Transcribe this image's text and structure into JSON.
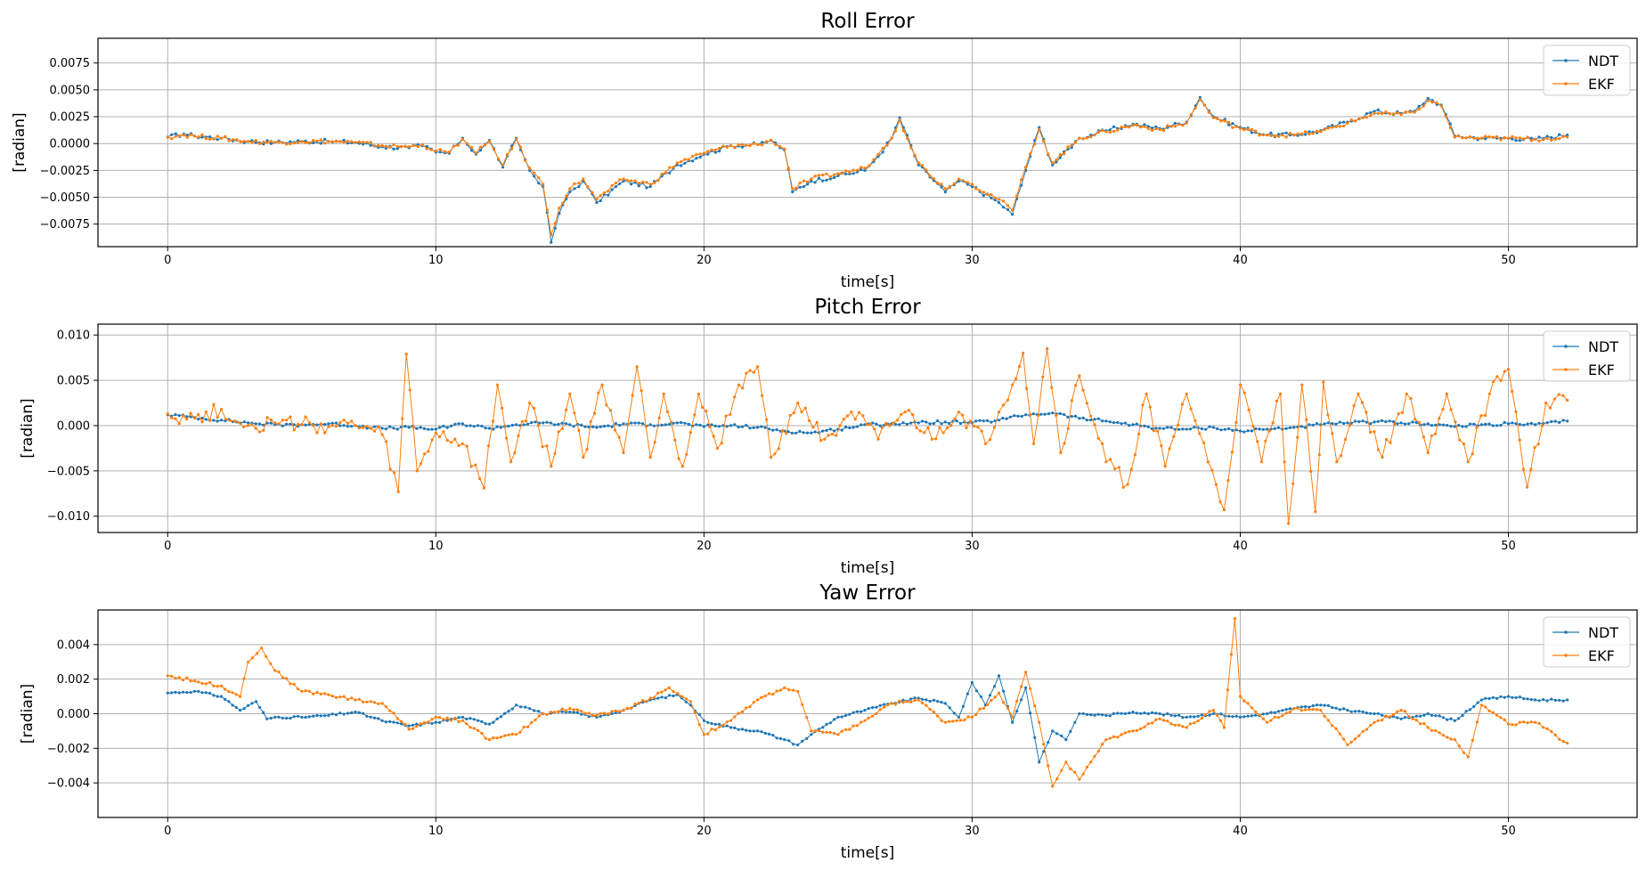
{
  "colors": {
    "ndt": "#1f77b4",
    "ekf": "#ff7f0e",
    "grid": "#b0b0b0"
  },
  "chart_data": [
    {
      "type": "line",
      "title": "Roll Error",
      "xlabel": "time[s]",
      "ylabel": "[radian]",
      "xlim": [
        -2.6,
        54.8
      ],
      "ylim": [
        -0.0096,
        0.0098
      ],
      "xticks": [
        0,
        10,
        20,
        30,
        40,
        50
      ],
      "xtick_labels": [
        "0",
        "10",
        "20",
        "30",
        "40",
        "50"
      ],
      "yticks": [
        -0.0075,
        -0.005,
        -0.0025,
        0.0,
        0.0025,
        0.005,
        0.0075
      ],
      "ytick_labels": [
        "−0.0075",
        "−0.0050",
        "−0.0025",
        "0.0000",
        "0.0025",
        "0.0050",
        "0.0075"
      ],
      "grid": true,
      "legend": "top-right",
      "series": [
        {
          "name": "NDT",
          "color_key": "ndt",
          "x": [
            0,
            0.6,
            1,
            2,
            3,
            4,
            5,
            6,
            7,
            8,
            9,
            9.5,
            10,
            10.5,
            11,
            11.5,
            12,
            12.5,
            13,
            13.5,
            14,
            14.3,
            14.6,
            15,
            15.5,
            16,
            17,
            18,
            19,
            20,
            21,
            22,
            22.5,
            23,
            23.3,
            24,
            25,
            26,
            26.5,
            27,
            27.3,
            28,
            29,
            29.5,
            30,
            31,
            31.5,
            32,
            32.5,
            33,
            34,
            35,
            36,
            37,
            38,
            38.5,
            39,
            40,
            41,
            42,
            43,
            44,
            45,
            46,
            46.5,
            47,
            47.5,
            48,
            49,
            50,
            51,
            52.2
          ],
          "y": [
            0.0006,
            0.0009,
            0.0007,
            0.0005,
            0.0002,
            0.0001,
            0.0002,
            0.0002,
            0.0001,
            -0.0003,
            -0.0004,
            -0.0002,
            -0.0008,
            -0.0009,
            0.0005,
            -0.001,
            0.0003,
            -0.0022,
            0.0005,
            -0.0025,
            -0.004,
            -0.0092,
            -0.0065,
            -0.0045,
            -0.0035,
            -0.0055,
            -0.0035,
            -0.004,
            -0.002,
            -0.001,
            -0.0002,
            -0.0001,
            0.0003,
            -0.0006,
            -0.0045,
            -0.0035,
            -0.003,
            -0.0025,
            -0.0012,
            0.0005,
            0.0024,
            -0.002,
            -0.0045,
            -0.0035,
            -0.004,
            -0.0055,
            -0.0066,
            -0.0025,
            0.0015,
            -0.002,
            0.0005,
            0.0012,
            0.0018,
            0.0014,
            0.002,
            0.0043,
            0.0025,
            0.0015,
            0.0008,
            0.0008,
            0.0012,
            0.002,
            0.003,
            0.0028,
            0.003,
            0.0042,
            0.0036,
            0.0007,
            0.0005,
            0.0005,
            0.0004,
            0.0008
          ]
        },
        {
          "name": "EKF",
          "color_key": "ekf",
          "x": [
            0,
            0.6,
            1,
            2,
            3,
            4,
            5,
            6,
            7,
            8,
            9,
            9.5,
            10,
            10.5,
            11,
            11.5,
            12,
            12.5,
            13,
            13.5,
            14,
            14.3,
            14.6,
            15,
            15.5,
            16,
            17,
            18,
            19,
            20,
            21,
            22,
            22.5,
            23,
            23.3,
            24,
            25,
            26,
            26.5,
            27,
            27.3,
            28,
            29,
            29.5,
            30,
            31,
            31.5,
            32,
            32.5,
            33,
            34,
            35,
            36,
            37,
            38,
            38.5,
            39,
            40,
            41,
            42,
            43,
            44,
            45,
            46,
            46.5,
            47,
            47.5,
            48,
            49,
            50,
            51,
            52.2
          ],
          "y": [
            0.0006,
            0.0008,
            0.0007,
            0.0005,
            0.0002,
            0.0001,
            0.0002,
            0.0002,
            0.0001,
            -0.0002,
            -0.0003,
            -0.0001,
            -0.0007,
            -0.0008,
            0.0004,
            -0.0009,
            0.0002,
            -0.002,
            0.0004,
            -0.0023,
            -0.0038,
            -0.0085,
            -0.006,
            -0.0042,
            -0.0033,
            -0.0052,
            -0.0033,
            -0.0038,
            -0.0018,
            -0.0009,
            -0.0002,
            -0.0001,
            0.0003,
            -0.0005,
            -0.0042,
            -0.0033,
            -0.0028,
            -0.0023,
            -0.001,
            0.0005,
            0.0022,
            -0.0018,
            -0.0042,
            -0.0033,
            -0.0038,
            -0.0052,
            -0.0062,
            -0.0022,
            0.0013,
            -0.0018,
            0.0005,
            0.0011,
            0.0017,
            0.0013,
            0.0019,
            0.0041,
            0.0024,
            0.0014,
            0.0008,
            0.0008,
            0.0011,
            0.0019,
            0.0028,
            0.0027,
            0.0029,
            0.004,
            0.0035,
            0.0006,
            0.0005,
            0.0005,
            0.0004,
            0.0006
          ]
        }
      ]
    },
    {
      "type": "line",
      "title": "Pitch Error",
      "xlabel": "time[s]",
      "ylabel": "[radian]",
      "xlim": [
        -2.6,
        54.8
      ],
      "ylim": [
        -0.0118,
        0.0112
      ],
      "xticks": [
        0,
        10,
        20,
        30,
        40,
        50
      ],
      "xtick_labels": [
        "0",
        "10",
        "20",
        "30",
        "40",
        "50"
      ],
      "yticks": [
        -0.01,
        -0.005,
        0.0,
        0.005,
        0.01
      ],
      "ytick_labels": [
        "−0.010",
        "−0.005",
        "0.000",
        "0.005",
        "0.010"
      ],
      "grid": true,
      "legend": "top-right",
      "series": [
        {
          "name": "NDT",
          "color_key": "ndt",
          "x": [
            0,
            1,
            2,
            3,
            4,
            5,
            6,
            7,
            8,
            9,
            10,
            11,
            12,
            13,
            14,
            15,
            16,
            17,
            18,
            19,
            20,
            21,
            22,
            23,
            24,
            25,
            26,
            27,
            28,
            29,
            30,
            31,
            32,
            33,
            34,
            35,
            36,
            37,
            38,
            39,
            40,
            41,
            42,
            43,
            44,
            45,
            46,
            47,
            48,
            49,
            50,
            51,
            52.2
          ],
          "y": [
            0.0012,
            0.0009,
            0.0006,
            0.0003,
            0.0001,
            0.0001,
            0.0002,
            0.0,
            -0.0003,
            -0.0002,
            -0.0004,
            0.0002,
            -0.0003,
            0.0001,
            0.0003,
            0.0001,
            -0.0002,
            0.0002,
            0.0001,
            0.0003,
            -0.0001,
            0.0,
            -0.0002,
            -0.0006,
            -0.0008,
            -0.0004,
            0.0001,
            0.0002,
            0.0003,
            0.0004,
            0.0003,
            0.0006,
            0.0012,
            0.0014,
            0.0008,
            0.0005,
            0.0001,
            -0.0003,
            -0.0004,
            -0.0002,
            -0.0006,
            -0.0004,
            -0.0002,
            0.0001,
            0.0003,
            0.0004,
            0.0003,
            0.0002,
            -0.0001,
            0.0001,
            0.0002,
            0.0001,
            0.0005
          ]
        },
        {
          "name": "EKF",
          "color_key": "ekf",
          "x": [
            0,
            1,
            2,
            2.5,
            3,
            4,
            5,
            6,
            7,
            8,
            8.6,
            8.9,
            9.3,
            10,
            11,
            11.8,
            12.3,
            12.8,
            13.5,
            14.3,
            15,
            15.5,
            16.2,
            17,
            17.5,
            18,
            18.5,
            19.2,
            19.8,
            20.5,
            21.3,
            22,
            22.5,
            23.5,
            24.5,
            25.5,
            26.5,
            27.5,
            28.5,
            29.5,
            30.5,
            31,
            31.5,
            31.9,
            32.3,
            32.8,
            33.3,
            34,
            35,
            35.8,
            36.5,
            37.2,
            38,
            38.8,
            39.4,
            40,
            40.8,
            41.5,
            41.8,
            42.3,
            42.8,
            43.1,
            43.6,
            44.4,
            45.3,
            46.2,
            47,
            47.7,
            48.5,
            49.3,
            50,
            50.7,
            51.4,
            52.2
          ],
          "y": [
            0.0013,
            0.0008,
            0.0018,
            0.0005,
            0.0,
            0.0003,
            0.0001,
            -0.0001,
            0.0,
            -0.001,
            -0.0073,
            0.0079,
            -0.005,
            -0.0008,
            -0.002,
            -0.0069,
            0.0045,
            -0.004,
            0.0025,
            -0.0045,
            0.0035,
            -0.0035,
            0.0045,
            -0.003,
            0.0065,
            -0.0035,
            0.0035,
            -0.0045,
            0.0035,
            -0.0025,
            0.0045,
            0.0065,
            -0.0035,
            0.0025,
            -0.0015,
            0.0015,
            -0.0015,
            0.0015,
            -0.0015,
            0.0015,
            -0.002,
            0.0015,
            0.0045,
            0.008,
            -0.002,
            0.0085,
            -0.003,
            0.0055,
            -0.004,
            -0.0065,
            0.0035,
            -0.0045,
            0.0035,
            -0.004,
            -0.0093,
            0.0045,
            -0.004,
            0.0035,
            -0.0108,
            0.0045,
            -0.0095,
            0.0048,
            -0.004,
            0.0035,
            -0.0035,
            0.0035,
            -0.003,
            0.0035,
            -0.004,
            0.0035,
            0.0062,
            -0.0068,
            0.0025,
            0.0028
          ]
        }
      ]
    },
    {
      "type": "line",
      "title": "Yaw Error",
      "xlabel": "time[s]",
      "ylabel": "[radian]",
      "xlim": [
        -2.6,
        54.8
      ],
      "ylim": [
        -0.006,
        0.006
      ],
      "xticks": [
        0,
        10,
        20,
        30,
        40,
        50
      ],
      "xtick_labels": [
        "0",
        "10",
        "20",
        "30",
        "40",
        "50"
      ],
      "yticks": [
        -0.004,
        -0.002,
        0.0,
        0.002,
        0.004
      ],
      "ytick_labels": [
        "−0.004",
        "−0.002",
        "0.000",
        "0.002",
        "0.004"
      ],
      "grid": true,
      "legend": "top-right",
      "series": [
        {
          "name": "NDT",
          "color_key": "ndt",
          "x": [
            0,
            1,
            2,
            2.7,
            3.3,
            3.7,
            4,
            5,
            6,
            7,
            8,
            9,
            10,
            11,
            12,
            13,
            13.5,
            14,
            15,
            16,
            17,
            18,
            19,
            19.5,
            20,
            21,
            22,
            23,
            23.5,
            24,
            25,
            26,
            27,
            28,
            29,
            29.5,
            30,
            30.5,
            31,
            31.5,
            32,
            32.5,
            33,
            33.5,
            34,
            35,
            36,
            37,
            38,
            39,
            40,
            41,
            42,
            43,
            44,
            45,
            46,
            47,
            48,
            49,
            50,
            51,
            52.2
          ],
          "y": [
            0.0012,
            0.0013,
            0.001,
            0.0002,
            0.0007,
            -0.0003,
            -0.0002,
            -0.0002,
            -0.0001,
            0.0001,
            -0.0004,
            -0.0007,
            -0.0005,
            -0.0002,
            -0.0006,
            0.0005,
            0.0003,
            0.0,
            0.0001,
            -0.0002,
            0.0002,
            0.0008,
            0.0011,
            0.0005,
            -0.0004,
            -0.0008,
            -0.001,
            -0.0015,
            -0.0018,
            -0.0012,
            -0.0002,
            0.0002,
            0.0006,
            0.0009,
            0.0006,
            -0.0002,
            0.0018,
            0.0005,
            0.0022,
            -0.0005,
            0.0015,
            -0.0028,
            -0.001,
            -0.0015,
            0.0,
            -0.0001,
            0.0001,
            0.0,
            -0.0002,
            0.0,
            -0.0002,
            0.0,
            0.0003,
            0.0005,
            0.0002,
            0.0,
            -0.0003,
            0.0,
            -0.0004,
            0.0008,
            0.001,
            0.0008,
            0.0008
          ]
        },
        {
          "name": "EKF",
          "color_key": "ekf",
          "x": [
            0,
            1,
            2,
            2.7,
            3,
            3.5,
            4,
            5,
            6,
            7,
            8,
            9,
            10,
            11,
            12,
            13,
            14,
            15,
            16,
            17,
            18,
            18.7,
            19.5,
            20,
            21,
            22,
            23,
            23.5,
            24,
            25,
            26,
            27,
            28,
            29,
            30,
            31,
            31.5,
            32,
            32.5,
            33,
            33.5,
            34,
            35,
            36,
            37,
            38,
            39,
            39.4,
            39.8,
            40,
            41,
            42,
            43,
            44,
            45,
            46,
            47,
            48,
            48.5,
            49,
            50,
            51,
            52.2
          ],
          "y": [
            0.0022,
            0.0019,
            0.0016,
            0.001,
            0.003,
            0.0038,
            0.0025,
            0.0013,
            0.0011,
            0.0008,
            0.0006,
            -0.0009,
            -0.0002,
            -0.0004,
            -0.0015,
            -0.0012,
            0.0,
            0.0003,
            -0.0001,
            0.0002,
            0.0009,
            0.0015,
            0.0007,
            -0.0012,
            -0.0004,
            0.0008,
            0.0015,
            0.0013,
            -0.001,
            -0.0012,
            -0.0004,
            0.0006,
            0.0008,
            -0.0005,
            -0.0002,
            0.0012,
            -0.0002,
            0.0024,
            -0.0005,
            -0.0042,
            -0.0028,
            -0.0038,
            -0.0015,
            -0.001,
            -0.0003,
            -0.0008,
            0.0002,
            -0.0008,
            0.0055,
            0.001,
            -0.0005,
            0.0003,
            0.0002,
            -0.0018,
            -0.0005,
            0.0002,
            -0.0008,
            -0.0015,
            -0.0025,
            0.0005,
            -0.0006,
            -0.0005,
            -0.0017
          ]
        }
      ]
    }
  ]
}
